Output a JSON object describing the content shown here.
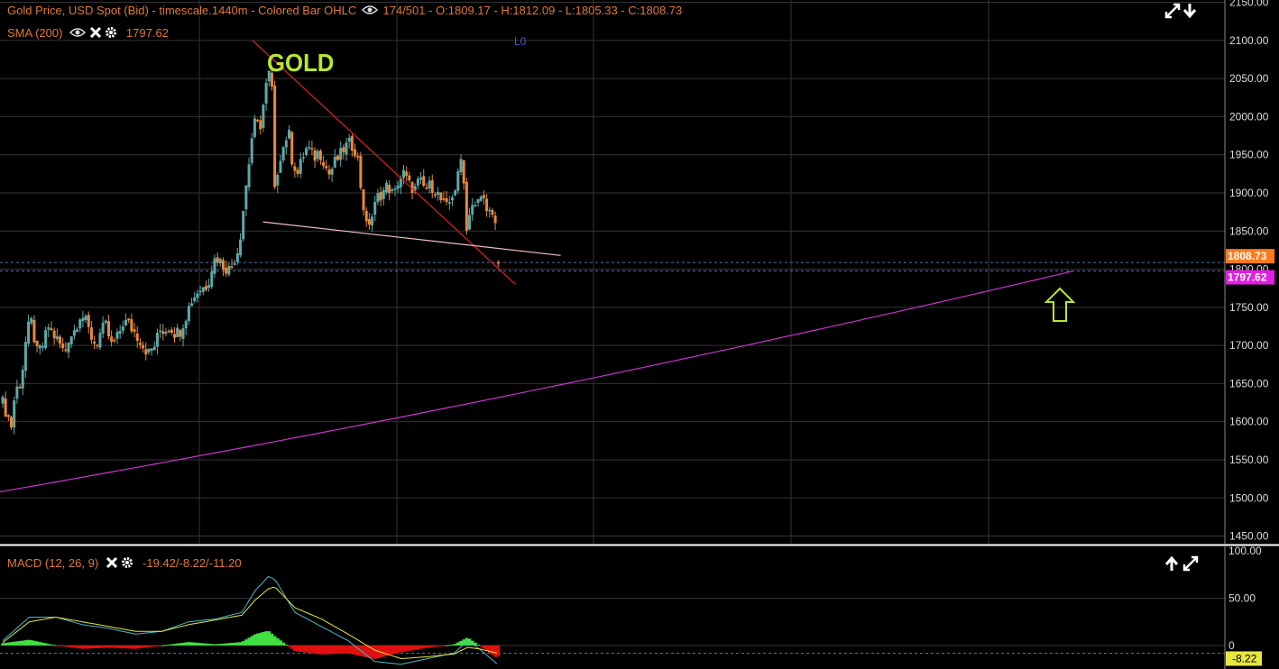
{
  "header": {
    "title": "Gold Price, USD Spot (Bid) - timescale.1440m - Colored Bar OHLC",
    "bars": "174/501",
    "ohlc": "- O:1809.17 - H:1812.09 - L:1805.33 - C:1808.73"
  },
  "sma_label": {
    "name": "SMA (200)",
    "value": "1797.62"
  },
  "annotation": {
    "gold": "GOLD",
    "marker": "L0"
  },
  "price_tags": {
    "last": "1808.73",
    "sma": "1797.62"
  },
  "macd_header": {
    "name": "MACD (12, 26, 9)",
    "values": "-19.42/-8.22/-11.20"
  },
  "macd_tag": "-8.22",
  "colors": {
    "up": "#5fa8a8",
    "down": "#e8883c",
    "sma": "#cc33cc",
    "trend": "#e02020",
    "support": "#f0c0c0",
    "macd": "#4bb8c8",
    "signal": "#e6e640",
    "hist_up": "#40e040",
    "hist_down": "#e01010",
    "arrow": "#b8e62e"
  },
  "chart_data": [
    {
      "type": "line",
      "title": "Gold Price, USD Spot (Bid) - timescale.1440m - Colored Bar OHLC",
      "y_ticks": [
        "2150.00",
        "2100.00",
        "2050.00",
        "2000.00",
        "1950.00",
        "1900.00",
        "1850.00",
        "1800.00",
        "1750.00",
        "1700.00",
        "1650.00",
        "1600.00",
        "1550.00",
        "1500.00",
        "1450.00"
      ],
      "ylim": [
        1440,
        2153
      ],
      "n_bars": 174,
      "close_anchors": [
        [
          0,
          1625
        ],
        [
          6,
          1595
        ],
        [
          10,
          1640
        ],
        [
          14,
          1655
        ],
        [
          18,
          1720
        ],
        [
          22,
          1730
        ],
        [
          26,
          1690
        ],
        [
          30,
          1700
        ],
        [
          34,
          1725
        ],
        [
          38,
          1715
        ],
        [
          42,
          1705
        ],
        [
          46,
          1690
        ],
        [
          50,
          1710
        ],
        [
          54,
          1720
        ],
        [
          58,
          1740
        ],
        [
          62,
          1735
        ],
        [
          66,
          1715
        ],
        [
          70,
          1700
        ],
        [
          74,
          1720
        ],
        [
          78,
          1725
        ],
        [
          82,
          1700
        ],
        [
          86,
          1710
        ],
        [
          90,
          1730
        ],
        [
          94,
          1730
        ],
        [
          98,
          1720
        ],
        [
          102,
          1710
        ],
        [
          106,
          1700
        ],
        [
          110,
          1690
        ],
        [
          114,
          1700
        ],
        [
          118,
          1720
        ],
        [
          122,
          1720
        ],
        [
          126,
          1725
        ],
        [
          130,
          1715
        ],
        [
          134,
          1720
        ],
        [
          138,
          1740
        ],
        [
          142,
          1760
        ],
        [
          146,
          1770
        ],
        [
          150,
          1775
        ],
        [
          154,
          1780
        ],
        [
          158,
          1810
        ],
        [
          162,
          1815
        ],
        [
          166,
          1805
        ],
        [
          170,
          1800
        ],
        [
          174,
          1810
        ],
        [
          178,
          1830
        ],
        [
          182,
          1895
        ],
        [
          186,
          1955
        ],
        [
          190,
          1990
        ],
        [
          194,
          1990
        ],
        [
          198,
          2040
        ],
        [
          200,
          2065
        ],
        [
          203,
          2035
        ],
        [
          205,
          1900
        ],
        [
          208,
          1945
        ],
        [
          212,
          1965
        ],
        [
          215,
          1990
        ],
        [
          218,
          1945
        ],
        [
          222,
          1925
        ],
        [
          226,
          1950
        ],
        [
          230,
          1960
        ],
        [
          234,
          1945
        ],
        [
          238,
          1955
        ],
        [
          242,
          1940
        ],
        [
          246,
          1925
        ],
        [
          250,
          1940
        ],
        [
          254,
          1950
        ],
        [
          258,
          1960
        ],
        [
          262,
          1965
        ],
        [
          266,
          1955
        ],
        [
          270,
          1910
        ],
        [
          274,
          1855
        ],
        [
          278,
          1870
        ],
        [
          282,
          1895
        ],
        [
          286,
          1900
        ],
        [
          290,
          1910
        ],
        [
          294,
          1895
        ],
        [
          298,
          1915
        ],
        [
          302,
          1925
        ],
        [
          306,
          1910
        ],
        [
          310,
          1905
        ],
        [
          314,
          1915
        ],
        [
          318,
          1905
        ],
        [
          322,
          1910
        ],
        [
          326,
          1905
        ],
        [
          330,
          1890
        ],
        [
          334,
          1880
        ],
        [
          338,
          1895
        ],
        [
          342,
          1910
        ],
        [
          346,
          1955
        ],
        [
          349,
          1850
        ],
        [
          352,
          1890
        ],
        [
          356,
          1880
        ],
        [
          360,
          1895
        ],
        [
          364,
          1885
        ],
        [
          368,
          1870
        ],
        [
          371,
          1855
        ],
        [
          372,
          1830
        ],
        [
          373,
          1809
        ]
      ],
      "last_ohlc": {
        "open": 1809.17,
        "high": 1812.09,
        "low": 1805.33,
        "close": 1808.73
      },
      "sma_200": {
        "name": "SMA (200)",
        "start": 1508,
        "end": 1797.62
      },
      "trendlines": [
        {
          "name": "downtrend",
          "from": [
            188,
            2100
          ],
          "to": [
            386,
            1780
          ]
        },
        {
          "name": "support",
          "from": [
            196,
            1862
          ],
          "to": [
            420,
            1818
          ]
        }
      ]
    },
    {
      "type": "line",
      "title": "MACD (12, 26, 9)",
      "y_ticks": [
        "100.00",
        "50.00",
        "0"
      ],
      "ylim": [
        -25,
        105
      ],
      "macd_anchors": [
        [
          0,
          5
        ],
        [
          20,
          30
        ],
        [
          40,
          30
        ],
        [
          60,
          22
        ],
        [
          80,
          18
        ],
        [
          100,
          12
        ],
        [
          120,
          15
        ],
        [
          140,
          25
        ],
        [
          160,
          28
        ],
        [
          180,
          35
        ],
        [
          190,
          58
        ],
        [
          200,
          73
        ],
        [
          205,
          70
        ],
        [
          220,
          35
        ],
        [
          240,
          20
        ],
        [
          260,
          5
        ],
        [
          280,
          -17
        ],
        [
          300,
          -20
        ],
        [
          320,
          -14
        ],
        [
          340,
          -8
        ],
        [
          350,
          5
        ],
        [
          360,
          -5
        ],
        [
          372,
          -19.42
        ]
      ],
      "signal_anchors": [
        [
          0,
          3
        ],
        [
          20,
          25
        ],
        [
          40,
          30
        ],
        [
          60,
          25
        ],
        [
          80,
          20
        ],
        [
          100,
          15
        ],
        [
          120,
          15
        ],
        [
          140,
          22
        ],
        [
          160,
          27
        ],
        [
          180,
          32
        ],
        [
          190,
          48
        ],
        [
          200,
          60
        ],
        [
          205,
          62
        ],
        [
          220,
          40
        ],
        [
          240,
          28
        ],
        [
          260,
          12
        ],
        [
          280,
          -5
        ],
        [
          300,
          -14
        ],
        [
          320,
          -12
        ],
        [
          340,
          -9
        ],
        [
          350,
          -2
        ],
        [
          360,
          -4
        ],
        [
          372,
          -8.22
        ]
      ],
      "hist_last": -11.2
    }
  ]
}
